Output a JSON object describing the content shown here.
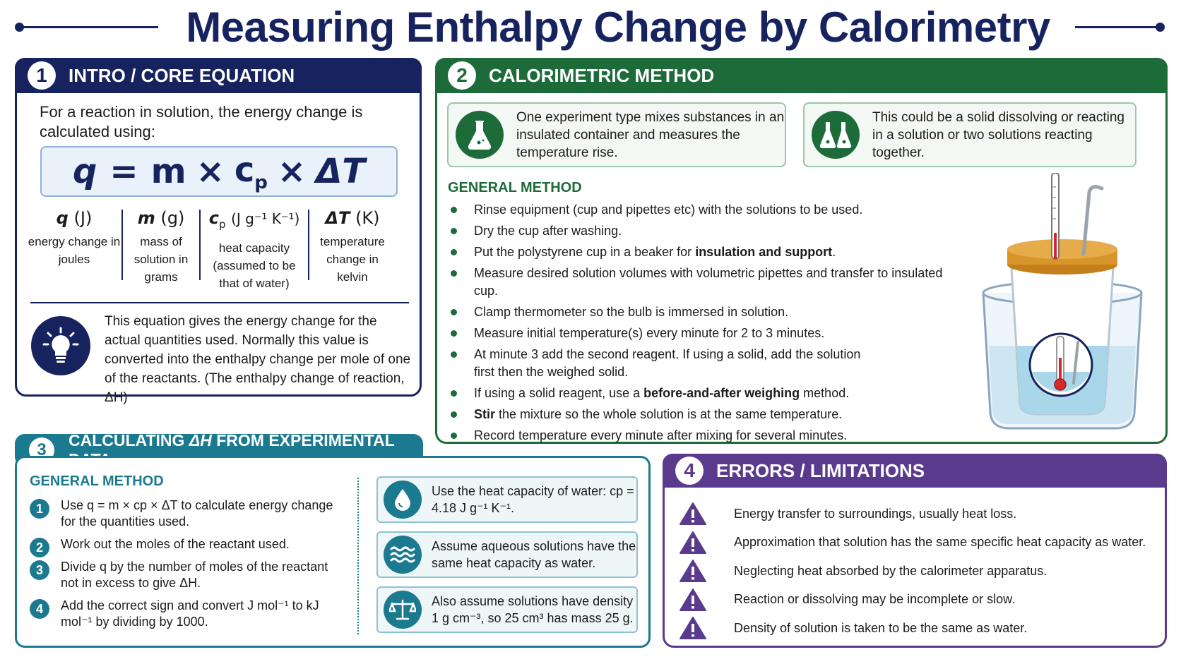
{
  "title": "Measuring Enthalpy Change by Calorimetry",
  "colors": {
    "navy": "#17235e",
    "green": "#1e6b3a",
    "teal": "#1b7a8f",
    "purple": "#5a3a8c"
  },
  "panel1": {
    "number": "1",
    "heading": "INTRO / CORE EQUATION",
    "intro": "For a reaction in solution, the energy change is calculated using:",
    "equation": {
      "lhs": "q",
      "eq": "=",
      "m": "m",
      "x1": "×",
      "c": "c",
      "c_sub": "p",
      "x2": "×",
      "dT": "ΔT"
    },
    "variables": [
      {
        "sym": "q",
        "unit": "(J)",
        "desc": "energy change in joules"
      },
      {
        "sym": "m",
        "unit": "(g)",
        "desc": "mass of solution in grams"
      },
      {
        "sym": "c",
        "sub": "p",
        "unit": "(J g⁻¹ K⁻¹)",
        "desc": "heat capacity (assumed to be that of water)"
      },
      {
        "sym": "ΔT",
        "unit": "(K)",
        "desc": "temperature change in kelvin"
      }
    ],
    "note": "This equation gives the energy change for the actual quantities used. Normally this value is converted into the enthalpy change per mole of one of the reactants. (The enthalpy change of reaction, ΔH)",
    "note_icon": "lightbulb-icon"
  },
  "panel2": {
    "number": "2",
    "heading": "CALORIMETRIC METHOD",
    "card_a": {
      "icon": "flask-icon",
      "text": "One experiment type mixes substances in an insulated container and measures the temperature rise."
    },
    "card_b": {
      "icon": "two-flasks-icon",
      "text": "This could be a solid dissolving or reacting in a solution or two solutions reacting together."
    },
    "method_title": "GENERAL METHOD",
    "steps": [
      {
        "pre": "Rinse equipment (cup and pipettes etc) with the solutions to be used.",
        "bold": "",
        "post": ""
      },
      {
        "pre": "Dry the cup after washing.",
        "bold": "",
        "post": ""
      },
      {
        "pre": "Put the polystyrene cup in a beaker for ",
        "bold": "insulation and support",
        "post": "."
      },
      {
        "pre": "Measure desired solution volumes with volumetric pipettes and transfer to insulated cup.",
        "bold": "",
        "post": ""
      },
      {
        "pre": "Clamp thermometer so the bulb is immersed in solution.",
        "bold": "",
        "post": ""
      },
      {
        "pre": "Measure initial temperature(s) every minute for 2 to 3 minutes.",
        "bold": "",
        "post": ""
      },
      {
        "pre": "At minute 3 add the second reagent. If using a solid, add the solution first then the weighed solid.",
        "bold": "",
        "post": ""
      },
      {
        "pre": "If using a solid reagent, use a ",
        "bold": "before-and-after weighing",
        "post": " method."
      },
      {
        "pre": "",
        "bold": "Stir",
        "post": " the mixture so the whole solution is at the same temperature."
      },
      {
        "pre": "Record temperature every minute after mixing for several minutes.",
        "bold": "",
        "post": ""
      }
    ],
    "illustration": "calorimeter-illustration"
  },
  "panel3": {
    "number": "3",
    "heading_pre": "CALCULATING ",
    "heading_sym": "ΔH",
    "heading_post": " FROM EXPERIMENTAL DATA",
    "method_title": "GENERAL METHOD",
    "steps": [
      {
        "n": "1",
        "text": "Use q = m × cp × ΔT to calculate energy change for the quantities used."
      },
      {
        "n": "2",
        "text": "Work out the moles of the reactant used."
      },
      {
        "n": "3",
        "text": "Divide q by the number of moles of the reactant not in excess to give ΔH."
      },
      {
        "n": "4",
        "text": "Add the correct sign and convert J mol⁻¹ to kJ mol⁻¹ by dividing by 1000."
      }
    ],
    "assumptions": [
      {
        "icon": "water-drop-icon",
        "text": "Use the heat capacity of water: cp = 4.18 J g⁻¹ K⁻¹."
      },
      {
        "icon": "waves-icon",
        "text": "Assume aqueous solutions have the same heat capacity as water."
      },
      {
        "icon": "balance-scale-icon",
        "text": "Also assume solutions have density 1 g cm⁻³, so 25 cm³ has mass 25 g."
      }
    ]
  },
  "panel4": {
    "number": "4",
    "heading": "ERRORS / LIMITATIONS",
    "errors": [
      "Energy transfer to surroundings, usually heat loss.",
      "Approximation that solution has the same specific heat capacity as water.",
      "Neglecting heat absorbed by the calorimeter apparatus.",
      "Reaction or dissolving may be incomplete or slow.",
      "Density of solution is taken to be the same as water."
    ],
    "error_icon": "warning-icon"
  }
}
